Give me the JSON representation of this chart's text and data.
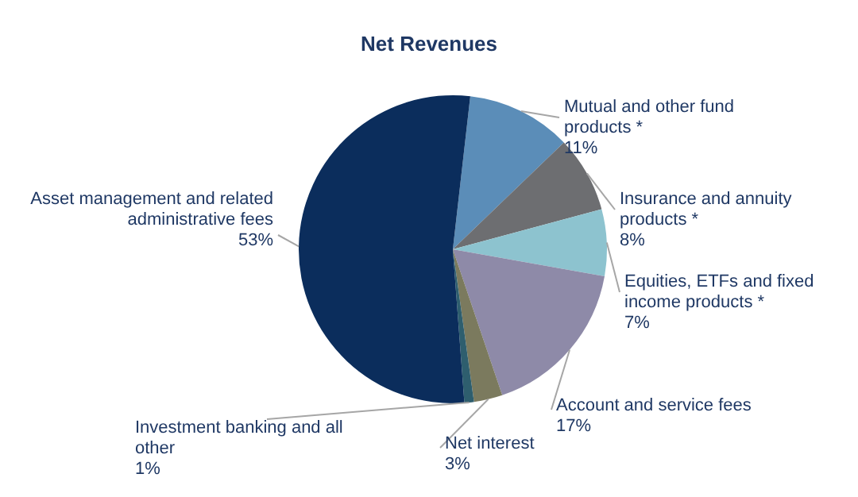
{
  "chart_data": {
    "type": "pie",
    "title": "Net Revenues",
    "categories": [
      "Mutual and other fund products *",
      "Insurance and annuity products *",
      "Equities, ETFs and fixed income products *",
      "Account and service fees",
      "Net interest",
      "Investment banking and all other",
      "Asset management and related administrative fees"
    ],
    "values": [
      11,
      8,
      7,
      17,
      3,
      1,
      53
    ],
    "colors": [
      "#5b8db8",
      "#6d6e71",
      "#8dc3cf",
      "#8e8aa8",
      "#7b7a5e",
      "#2e5e6e",
      "#0b2d5c"
    ],
    "value_labels": [
      "11%",
      "8%",
      "7%",
      "17%",
      "3%",
      "1%",
      "53%"
    ],
    "legend": false
  }
}
